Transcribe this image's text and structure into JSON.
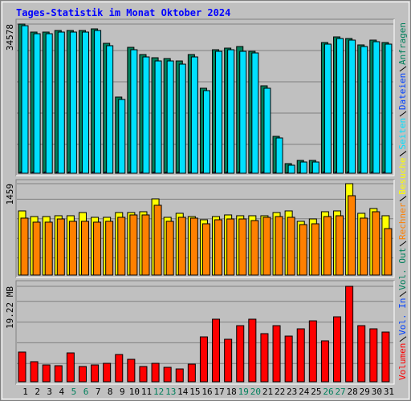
{
  "chart_data": {
    "type": "bar",
    "title": "Tages-Statistik im Monat Oktober 2024",
    "categories": [
      "1",
      "2",
      "3",
      "4",
      "5",
      "6",
      "7",
      "8",
      "9",
      "10",
      "11",
      "12",
      "13",
      "14",
      "15",
      "16",
      "17",
      "18",
      "19",
      "20",
      "21",
      "22",
      "23",
      "24",
      "25",
      "26",
      "27",
      "28",
      "29",
      "30",
      "31"
    ],
    "category_colors": [
      "#000000",
      "#000000",
      "#000000",
      "#000000",
      "#00805c",
      "#00805c",
      "#000000",
      "#000000",
      "#000000",
      "#000000",
      "#000000",
      "#00805c",
      "#00805c",
      "#000000",
      "#000000",
      "#000000",
      "#000000",
      "#000000",
      "#00805c",
      "#00805c",
      "#000000",
      "#000000",
      "#000000",
      "#000000",
      "#000000",
      "#00805c",
      "#00805c",
      "#000000",
      "#000000",
      "#000000",
      "#000000"
    ],
    "panels": [
      {
        "ylim": [
          0,
          34578
        ],
        "yticks": [
          34578
        ],
        "series": [
          {
            "name": "Anfragen",
            "color": "#00805c",
            "values": [
              34578,
              32718,
              32718,
              33090,
              33090,
              33090,
              33462,
              30116,
              17661,
              29186,
              27513,
              26770,
              26584,
              26026,
              27513,
              19705,
              28628,
              29000,
              29372,
              28257,
              20263,
              8552,
              2231,
              2974,
              2974,
              30302,
              31603,
              31231,
              29744,
              30859,
              30302
            ]
          },
          {
            "name": "Dateien",
            "color": "#0040ff",
            "values": [
              300,
              280,
              290,
              300,
              280,
              270,
              310,
              290,
              260,
              300,
              280,
              270,
              260,
              280,
              290,
              260,
              300,
              290,
              280,
              270,
              280,
              200,
              150,
              160,
              160,
              300,
              310,
              300,
              290,
              300,
              290
            ]
          },
          {
            "name": "Seiten",
            "color": "#00e0ff",
            "values": [
              34200,
              32340,
              32340,
              32718,
              32718,
              32718,
              33090,
              29560,
              17100,
              28628,
              26956,
              26026,
              26026,
              25282,
              26956,
              19147,
              28257,
              28628,
              28257,
              27884,
              19705,
              8180,
              1860,
              2600,
              2600,
              29930,
              31231,
              30859,
              29372,
              30488,
              29930
            ]
          }
        ]
      },
      {
        "ylim": [
          0,
          1459
        ],
        "yticks": [
          1459
        ],
        "series": [
          {
            "name": "Besuche",
            "color": "#ffff00",
            "values": [
              1024,
              934,
              934,
              947,
              947,
              998,
              922,
              922,
              998,
              998,
              1011,
              1216,
              922,
              986,
              934,
              883,
              934,
              960,
              947,
              947,
              947,
              998,
              1024,
              858,
              896,
              1011,
              1024,
              1459,
              986,
              1062,
              947
            ]
          },
          {
            "name": "Rechner",
            "color": "#ff8000",
            "values": [
              909,
              845,
              845,
              896,
              858,
              858,
              845,
              858,
              922,
              960,
              960,
              1114,
              858,
              922,
              909,
              819,
              883,
              896,
              896,
              870,
              922,
              934,
              922,
              806,
              819,
              934,
              947,
              1267,
              909,
              1011,
              742
            ]
          }
        ]
      },
      {
        "ylim": [
          0,
          19.22
        ],
        "yticks": [
          {
            "value": 19.22,
            "label": "19.22 MB"
          }
        ],
        "series": [
          {
            "name": "Volumen",
            "color": "#ff0000",
            "values": [
              5.98,
              4.04,
              3.39,
              3.23,
              5.81,
              3.07,
              3.39,
              3.71,
              5.49,
              4.52,
              3.07,
              3.71,
              2.91,
              2.58,
              3.55,
              9.04,
              12.6,
              8.56,
              11.3,
              12.6,
              9.69,
              11.3,
              9.2,
              10.66,
              12.27,
              8.24,
              13.08,
              19.22,
              11.3,
              10.66,
              10.01
            ]
          },
          {
            "name": "Vol. In",
            "color": "#0040ff"
          },
          {
            "name": "Vol. Out",
            "color": "#00805c"
          }
        ]
      }
    ]
  }
}
